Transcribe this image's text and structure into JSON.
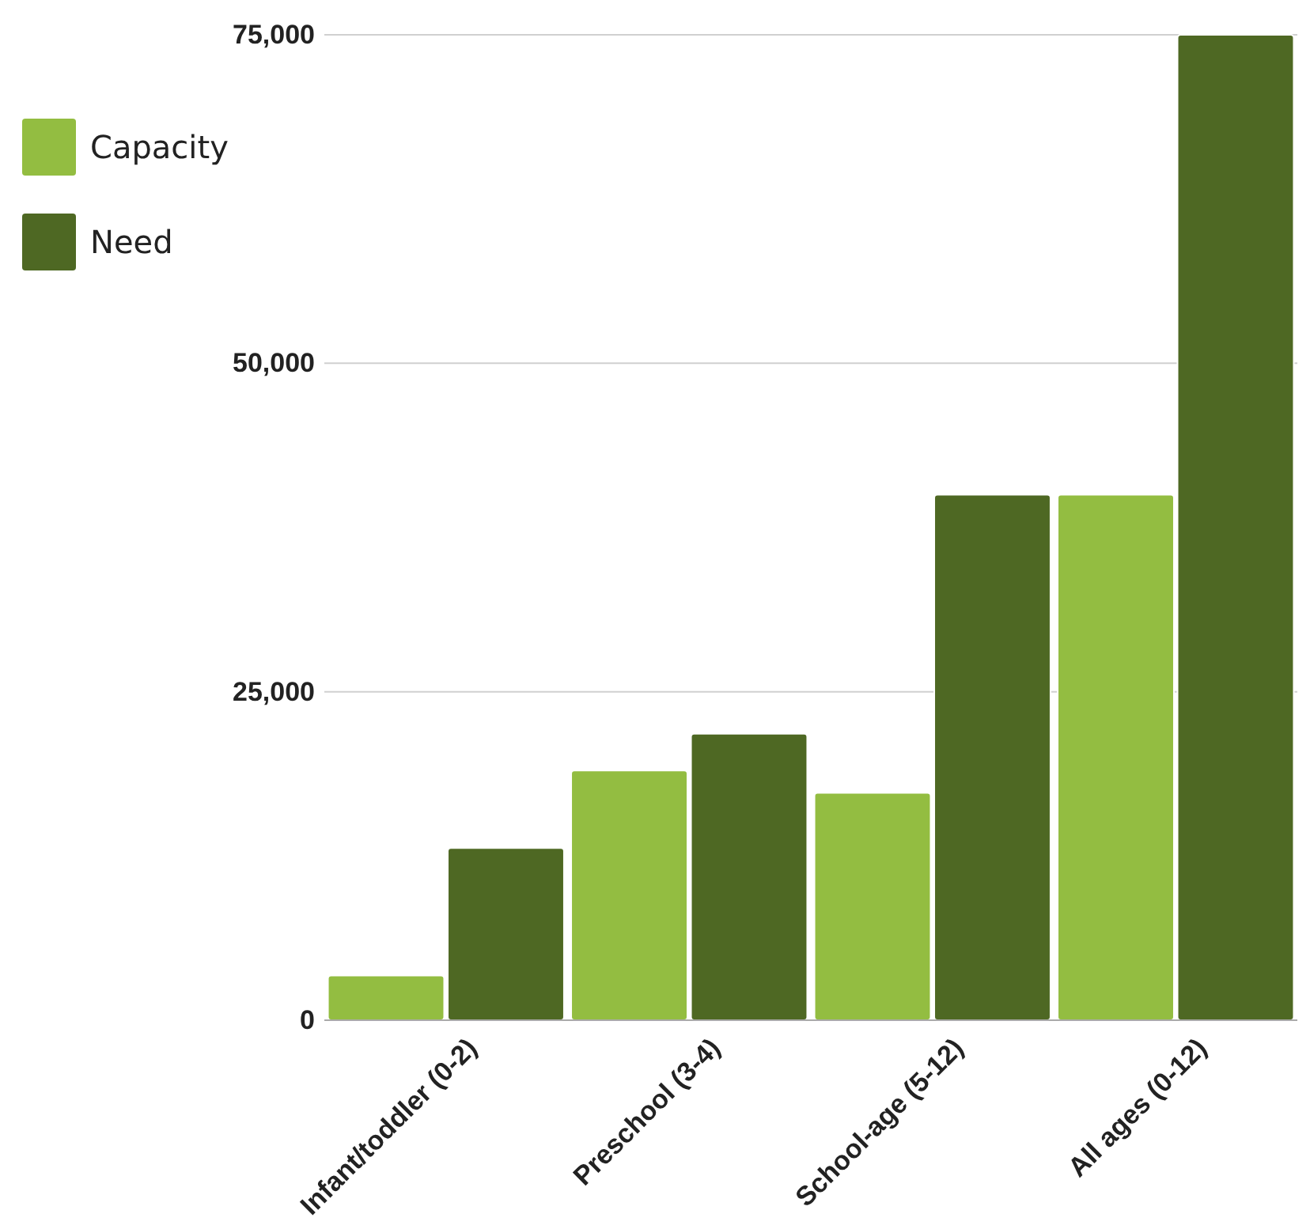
{
  "chart_data": {
    "type": "bar",
    "categories": [
      "Infant/toddler (0-2)",
      "Preschool (3-4)",
      "School-age (5-12)",
      "All ages (0-12)"
    ],
    "series": [
      {
        "name": "Capacity",
        "color": "#93bd41",
        "values": [
          3400,
          19000,
          17300,
          40000
        ]
      },
      {
        "name": "Need",
        "color": "#4e6823",
        "values": [
          13100,
          21800,
          40000,
          75000
        ]
      }
    ],
    "ylim": [
      0,
      75000
    ],
    "yticks": [
      {
        "value": 0,
        "label": "0"
      },
      {
        "value": 25000,
        "label": "25,000"
      },
      {
        "value": 50000,
        "label": "50,000"
      },
      {
        "value": 75000,
        "label": "75,000"
      }
    ],
    "grid": "y",
    "legend": "top left"
  }
}
